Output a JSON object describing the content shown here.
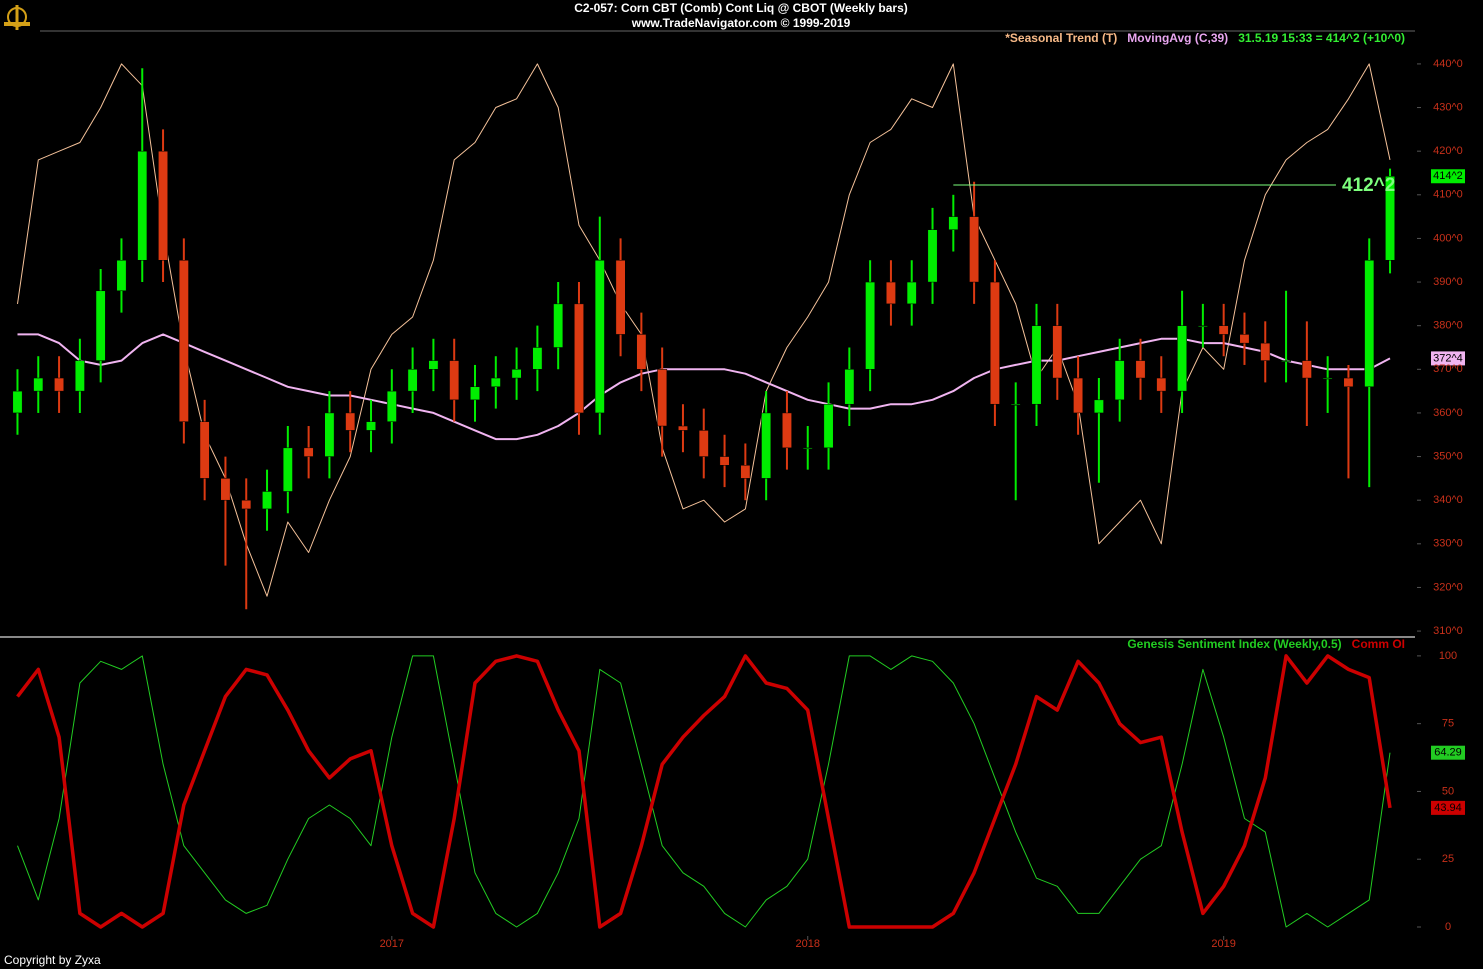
{
  "header": {
    "title": "C2-057:  Corn CBT (Comb) Cont Liq @ CBOT  (Weekly bars)",
    "subtitle": "www.TradeNavigator.com © 1999-2019"
  },
  "footer": "Copyright by Zyxa",
  "chart_data": [
    {
      "type": "candlestick",
      "legend": [
        {
          "text": "*Seasonal Trend (T)",
          "color": "#f7b987"
        },
        {
          "text": "MovingAvg (C,39)",
          "color": "#e9a6f0"
        },
        {
          "text": "31.5.19 15:33 = 414^2 (+10^0)",
          "color": "#33ee33"
        }
      ],
      "x": [
        2016.1,
        2016.15,
        2016.2,
        2016.25,
        2016.3,
        2016.35,
        2016.4,
        2016.45,
        2016.5,
        2016.55,
        2016.6,
        2016.65,
        2016.7,
        2016.75,
        2016.8,
        2016.85,
        2016.9,
        2016.95,
        2017.0,
        2017.05,
        2017.1,
        2017.15,
        2017.2,
        2017.25,
        2017.3,
        2017.35,
        2017.4,
        2017.45,
        2017.5,
        2017.55,
        2017.6,
        2017.65,
        2017.7,
        2017.75,
        2017.8,
        2017.85,
        2017.9,
        2017.95,
        2018.0,
        2018.05,
        2018.1,
        2018.15,
        2018.2,
        2018.25,
        2018.3,
        2018.35,
        2018.4,
        2018.45,
        2018.5,
        2018.55,
        2018.6,
        2018.65,
        2018.7,
        2018.75,
        2018.8,
        2018.85,
        2018.9,
        2018.95,
        2019.0,
        2019.05,
        2019.1,
        2019.15,
        2019.2,
        2019.25,
        2019.3,
        2019.35,
        2019.4
      ],
      "open": [
        360,
        365,
        368,
        365,
        372,
        388,
        395,
        420,
        395,
        358,
        345,
        340,
        338,
        342,
        352,
        350,
        360,
        356,
        358,
        365,
        370,
        372,
        363,
        366,
        368,
        370,
        375,
        385,
        360,
        395,
        378,
        370,
        357,
        356,
        350,
        348,
        345,
        360,
        352,
        352,
        362,
        370,
        390,
        385,
        390,
        402,
        405,
        390,
        362,
        362,
        380,
        368,
        360,
        363,
        372,
        368,
        365,
        380,
        380,
        378,
        376,
        372,
        372,
        368,
        368,
        366,
        395
      ],
      "high": [
        370,
        373,
        373,
        377,
        393,
        400,
        439,
        425,
        400,
        363,
        350,
        345,
        347,
        357,
        357,
        365,
        365,
        363,
        370,
        375,
        377,
        377,
        371,
        373,
        375,
        380,
        390,
        390,
        405,
        400,
        383,
        375,
        362,
        361,
        355,
        353,
        365,
        365,
        357,
        367,
        375,
        395,
        395,
        395,
        407,
        410,
        413,
        395,
        367,
        385,
        385,
        373,
        368,
        377,
        377,
        373,
        388,
        385,
        385,
        383,
        381,
        388,
        381,
        373,
        371,
        400,
        416
      ],
      "low": [
        355,
        360,
        360,
        360,
        367,
        383,
        390,
        390,
        353,
        340,
        325,
        315,
        333,
        337,
        345,
        345,
        351,
        351,
        353,
        360,
        365,
        358,
        358,
        361,
        363,
        365,
        370,
        355,
        355,
        373,
        365,
        350,
        351,
        345,
        343,
        340,
        340,
        347,
        347,
        347,
        357,
        365,
        380,
        380,
        385,
        397,
        385,
        357,
        340,
        357,
        363,
        355,
        344,
        358,
        363,
        360,
        360,
        375,
        373,
        371,
        367,
        367,
        357,
        360,
        345,
        343,
        392
      ],
      "close": [
        365,
        368,
        365,
        372,
        388,
        395,
        420,
        395,
        358,
        345,
        340,
        338,
        342,
        352,
        350,
        360,
        356,
        358,
        365,
        370,
        372,
        363,
        366,
        368,
        370,
        375,
        385,
        360,
        395,
        378,
        370,
        357,
        356,
        350,
        348,
        345,
        360,
        352,
        352,
        362,
        370,
        390,
        385,
        390,
        402,
        405,
        390,
        362,
        362,
        380,
        368,
        360,
        363,
        372,
        368,
        365,
        380,
        380,
        378,
        376,
        372,
        372,
        368,
        368,
        366,
        395,
        414.25
      ],
      "last_label": "414^2",
      "up_color": "#00ee00",
      "down_color": "#dd3a12",
      "lines": [
        {
          "color": "#f5c29a",
          "values": [
            385,
            418,
            420,
            422,
            430,
            440,
            435,
            402,
            375,
            355,
            345,
            330,
            318,
            335,
            328,
            340,
            350,
            370,
            378,
            382,
            395,
            418,
            422,
            430,
            432,
            440,
            430,
            403,
            395,
            385,
            378,
            352,
            338,
            340,
            335,
            338,
            365,
            375,
            382,
            390,
            410,
            422,
            425,
            432,
            430,
            440,
            405,
            395,
            385,
            368,
            375,
            362,
            330,
            335,
            340,
            330,
            365,
            375,
            370,
            395,
            410,
            418,
            422,
            425,
            432,
            440,
            418
          ]
        },
        {
          "color": "#f0b4f0",
          "values": [
            378,
            378,
            376,
            372,
            371,
            372,
            376,
            378,
            376,
            374,
            372,
            370,
            368,
            366,
            365,
            364,
            364,
            363,
            362,
            361,
            360,
            358,
            356,
            354,
            354,
            355,
            357,
            360,
            364,
            367,
            369,
            370,
            370,
            370,
            370,
            369,
            367,
            365,
            363,
            362,
            361,
            361,
            362,
            362,
            363,
            365,
            368,
            370,
            371,
            372,
            372,
            373,
            374,
            375,
            376,
            377,
            377,
            376,
            376,
            375,
            374,
            372,
            371,
            370,
            370,
            370,
            372.5
          ],
          "last_label": "372^4"
        }
      ],
      "annotation": {
        "text": "412^2",
        "value": 412.25,
        "x": [
          2018.35,
          2019.27
        ],
        "color": "#7dff7d"
      },
      "xlim": [
        2016.07,
        2019.46
      ],
      "ylim": [
        309.1,
        446.4
      ],
      "yticks": [
        {
          "value": 310,
          "label": "310^0"
        },
        {
          "value": 320,
          "label": "320^0"
        },
        {
          "value": 330,
          "label": "330^0"
        },
        {
          "value": 340,
          "label": "340^0"
        },
        {
          "value": 350,
          "label": "350^0"
        },
        {
          "value": 360,
          "label": "360^0"
        },
        {
          "value": 370,
          "label": "370^0"
        },
        {
          "value": 380,
          "label": "380^0"
        },
        {
          "value": 390,
          "label": "390^0"
        },
        {
          "value": 400,
          "label": "400^0"
        },
        {
          "value": 410,
          "label": "410^0"
        },
        {
          "value": 420,
          "label": "420^0"
        },
        {
          "value": 430,
          "label": "430^0"
        },
        {
          "value": 440,
          "label": "440^0"
        }
      ]
    },
    {
      "type": "line",
      "x": [
        2016.1,
        2016.15,
        2016.2,
        2016.25,
        2016.3,
        2016.35,
        2016.4,
        2016.45,
        2016.5,
        2016.55,
        2016.6,
        2016.65,
        2016.7,
        2016.75,
        2016.8,
        2016.85,
        2016.9,
        2016.95,
        2017.0,
        2017.05,
        2017.1,
        2017.15,
        2017.2,
        2017.25,
        2017.3,
        2017.35,
        2017.4,
        2017.45,
        2017.5,
        2017.55,
        2017.6,
        2017.65,
        2017.7,
        2017.75,
        2017.8,
        2017.85,
        2017.9,
        2017.95,
        2018.0,
        2018.05,
        2018.1,
        2018.15,
        2018.2,
        2018.25,
        2018.3,
        2018.35,
        2018.4,
        2018.45,
        2018.5,
        2018.55,
        2018.6,
        2018.65,
        2018.7,
        2018.75,
        2018.8,
        2018.85,
        2018.9,
        2018.95,
        2019.0,
        2019.05,
        2019.1,
        2019.15,
        2019.2,
        2019.25,
        2019.3,
        2019.35,
        2019.4
      ],
      "series": [
        {
          "name": "Genesis Sentiment Index (Weekly,0.5)",
          "color": "#22cc22",
          "width": 1,
          "values": [
            30,
            10,
            40,
            90,
            98,
            95,
            100,
            60,
            30,
            20,
            10,
            5,
            8,
            25,
            40,
            45,
            40,
            30,
            70,
            100,
            100,
            60,
            20,
            5,
            0,
            5,
            20,
            40,
            95,
            90,
            60,
            30,
            20,
            15,
            5,
            0,
            10,
            15,
            25,
            60,
            100,
            100,
            95,
            100,
            98,
            90,
            75,
            55,
            35,
            18,
            15,
            5,
            5,
            15,
            25,
            30,
            60,
            95,
            70,
            40,
            35,
            0,
            5,
            0,
            5,
            10,
            64.29
          ]
        },
        {
          "name": "Comm OI",
          "color": "#cc0000",
          "width": 3.5,
          "values": [
            85,
            95,
            70,
            5,
            0,
            5,
            0,
            5,
            45,
            65,
            85,
            95,
            93,
            80,
            65,
            55,
            62,
            65,
            30,
            5,
            0,
            40,
            90,
            98,
            100,
            98,
            80,
            65,
            0,
            5,
            30,
            60,
            70,
            78,
            85,
            100,
            90,
            88,
            80,
            40,
            0,
            0,
            0,
            0,
            0,
            5,
            20,
            40,
            60,
            85,
            80,
            98,
            90,
            75,
            68,
            70,
            35,
            5,
            15,
            30,
            55,
            100,
            90,
            100,
            95,
            92,
            43.94
          ]
        }
      ],
      "xlim": [
        2016.07,
        2019.46
      ],
      "ylim": [
        -4.8,
        106.6
      ],
      "yticks": [
        0,
        25,
        50,
        75,
        100
      ],
      "xticks": [
        2017,
        2018,
        2019
      ]
    }
  ]
}
